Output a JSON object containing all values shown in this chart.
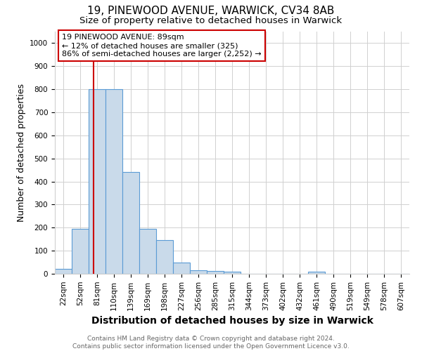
{
  "title": "19, PINEWOOD AVENUE, WARWICK, CV34 8AB",
  "subtitle": "Size of property relative to detached houses in Warwick",
  "xlabel": "Distribution of detached houses by size in Warwick",
  "ylabel": "Number of detached properties",
  "bar_labels": [
    "22sqm",
    "52sqm",
    "81sqm",
    "110sqm",
    "139sqm",
    "169sqm",
    "198sqm",
    "227sqm",
    "256sqm",
    "285sqm",
    "315sqm",
    "344sqm",
    "373sqm",
    "402sqm",
    "432sqm",
    "461sqm",
    "490sqm",
    "519sqm",
    "549sqm",
    "578sqm",
    "607sqm"
  ],
  "bar_heights": [
    20,
    195,
    800,
    800,
    440,
    195,
    145,
    50,
    15,
    12,
    10,
    0,
    0,
    0,
    0,
    10,
    0,
    0,
    0,
    0,
    0
  ],
  "bar_color": "#c9daea",
  "bar_edgecolor": "#5b9bd5",
  "marker_color": "#cc0000",
  "annotation_text": "19 PINEWOOD AVENUE: 89sqm\n← 12% of detached houses are smaller (325)\n86% of semi-detached houses are larger (2,252) →",
  "annotation_box_color": "#ffffff",
  "annotation_box_edgecolor": "#cc0000",
  "ylim": [
    0,
    1050
  ],
  "yticks": [
    0,
    100,
    200,
    300,
    400,
    500,
    600,
    700,
    800,
    900,
    1000
  ],
  "footer_text": "Contains HM Land Registry data © Crown copyright and database right 2024.\nContains public sector information licensed under the Open Government Licence v3.0.",
  "bg_color": "#ffffff",
  "grid_color": "#d0d0d0",
  "title_fontsize": 11,
  "subtitle_fontsize": 9.5,
  "axis_label_fontsize": 9,
  "tick_fontsize": 7.5,
  "footer_fontsize": 6.5,
  "annotation_fontsize": 8
}
